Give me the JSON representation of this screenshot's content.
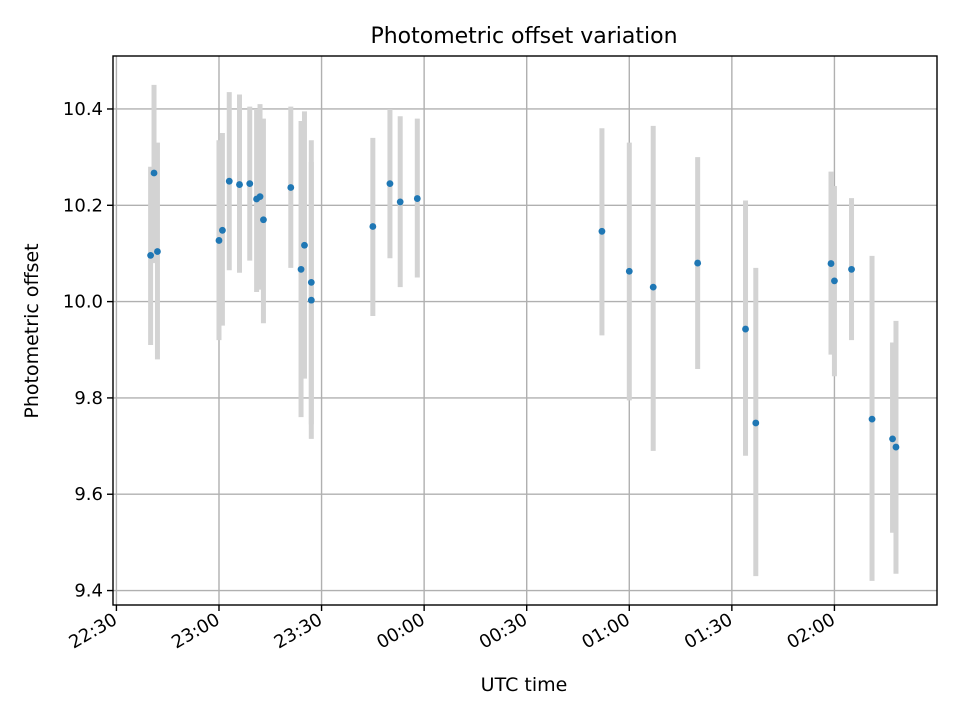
{
  "chart_data": {
    "type": "scatter",
    "title": "Photometric offset variation",
    "xlabel": "UTC time",
    "ylabel": "Photometric offset",
    "x_tick_labels": [
      "22:30",
      "23:00",
      "23:30",
      "00:00",
      "00:30",
      "01:00",
      "01:30",
      "02:00"
    ],
    "x_tick_times": [
      "2000-01-01T22:30",
      "2000-01-01T23:00",
      "2000-01-01T23:30",
      "2000-01-02T00:00",
      "2000-01-02T00:30",
      "2000-01-02T01:00",
      "2000-01-02T01:30",
      "2000-01-02T02:00"
    ],
    "xlim": [
      "2000-01-01T22:29",
      "2000-01-02T02:30"
    ],
    "y_ticks": [
      "9.4",
      "9.6",
      "9.8",
      "10.0",
      "10.2",
      "10.4"
    ],
    "ylim": [
      9.37,
      10.51
    ],
    "grid": true,
    "point_color": "#1f77b4",
    "errorbar_color": "#d3d3d3",
    "series": [
      {
        "points": [
          {
            "t": "2000-01-01T22:40",
            "y": 10.096,
            "lo": 9.91,
            "hi": 10.28
          },
          {
            "t": "2000-01-01T22:41",
            "y": 10.267,
            "lo": 10.08,
            "hi": 10.45
          },
          {
            "t": "2000-01-01T22:42",
            "y": 10.104,
            "lo": 9.88,
            "hi": 10.33
          },
          {
            "t": "2000-01-01T23:00",
            "y": 10.127,
            "lo": 9.92,
            "hi": 10.335
          },
          {
            "t": "2000-01-01T23:01",
            "y": 10.148,
            "lo": 9.95,
            "hi": 10.35
          },
          {
            "t": "2000-01-01T23:03",
            "y": 10.25,
            "lo": 10.065,
            "hi": 10.435
          },
          {
            "t": "2000-01-01T23:06",
            "y": 10.243,
            "lo": 10.06,
            "hi": 10.43
          },
          {
            "t": "2000-01-01T23:09",
            "y": 10.245,
            "lo": 10.085,
            "hi": 10.405
          },
          {
            "t": "2000-01-01T23:11",
            "y": 10.213,
            "lo": 10.02,
            "hi": 10.4
          },
          {
            "t": "2000-01-01T23:12",
            "y": 10.218,
            "lo": 10.025,
            "hi": 10.41
          },
          {
            "t": "2000-01-01T23:13",
            "y": 10.17,
            "lo": 9.955,
            "hi": 10.38
          },
          {
            "t": "2000-01-01T23:21",
            "y": 10.237,
            "lo": 10.07,
            "hi": 10.405
          },
          {
            "t": "2000-01-01T23:24",
            "y": 10.067,
            "lo": 9.76,
            "hi": 10.375
          },
          {
            "t": "2000-01-01T23:25",
            "y": 10.117,
            "lo": 9.84,
            "hi": 10.395
          },
          {
            "t": "2000-01-01T23:27",
            "y": 10.04,
            "lo": 9.745,
            "hi": 10.335
          },
          {
            "t": "2000-01-01T23:27",
            "y": 10.003,
            "lo": 9.715,
            "hi": 10.29
          },
          {
            "t": "2000-01-01T23:45",
            "y": 10.156,
            "lo": 9.97,
            "hi": 10.34
          },
          {
            "t": "2000-01-01T23:50",
            "y": 10.245,
            "lo": 10.09,
            "hi": 10.4
          },
          {
            "t": "2000-01-01T23:53",
            "y": 10.207,
            "lo": 10.03,
            "hi": 10.385
          },
          {
            "t": "2000-01-01T23:58",
            "y": 10.214,
            "lo": 10.05,
            "hi": 10.38
          },
          {
            "t": "2000-01-02T00:52",
            "y": 10.146,
            "lo": 9.93,
            "hi": 10.36
          },
          {
            "t": "2000-01-02T01:00",
            "y": 10.063,
            "lo": 9.795,
            "hi": 10.33
          },
          {
            "t": "2000-01-02T01:07",
            "y": 10.03,
            "lo": 9.69,
            "hi": 10.365
          },
          {
            "t": "2000-01-02T01:20",
            "y": 10.08,
            "lo": 9.86,
            "hi": 10.3
          },
          {
            "t": "2000-01-02T01:34",
            "y": 9.943,
            "lo": 9.68,
            "hi": 10.21
          },
          {
            "t": "2000-01-02T01:37",
            "y": 9.748,
            "lo": 9.43,
            "hi": 10.07
          },
          {
            "t": "2000-01-02T01:59",
            "y": 10.079,
            "lo": 9.89,
            "hi": 10.27
          },
          {
            "t": "2000-01-02T02:00",
            "y": 10.043,
            "lo": 9.845,
            "hi": 10.24
          },
          {
            "t": "2000-01-02T02:05",
            "y": 10.067,
            "lo": 9.92,
            "hi": 10.215
          },
          {
            "t": "2000-01-02T02:11",
            "y": 9.756,
            "lo": 9.42,
            "hi": 10.095
          },
          {
            "t": "2000-01-02T02:17",
            "y": 9.715,
            "lo": 9.52,
            "hi": 9.915
          },
          {
            "t": "2000-01-02T02:18",
            "y": 9.698,
            "lo": 9.435,
            "hi": 9.96
          }
        ]
      }
    ]
  }
}
